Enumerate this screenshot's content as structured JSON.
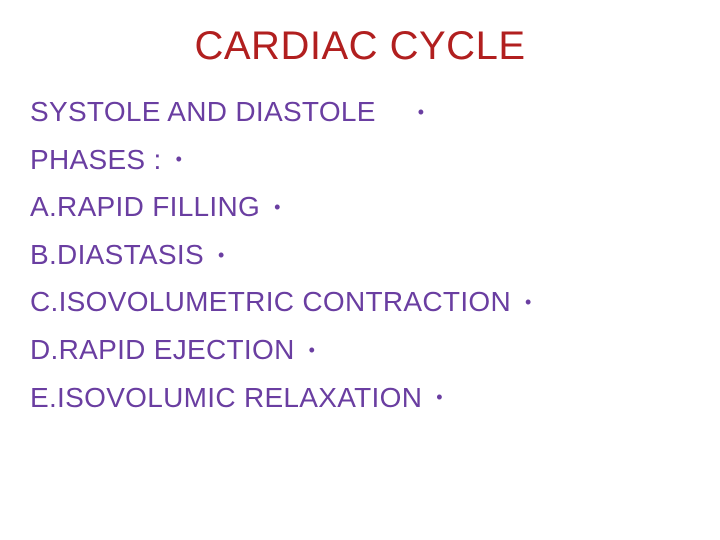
{
  "styling": {
    "title_color": "#b11f1f",
    "body_color": "#6a3ea1",
    "bullet_color": "#6a3ea1",
    "title_fontsize": 40,
    "body_fontsize": 28,
    "background_color": "#ffffff"
  },
  "title": "CARDIAC CYCLE",
  "lines": [
    {
      "text": "SYSTOLE AND DIASTOLE"
    },
    {
      "text": "PHASES :"
    },
    {
      "text": "A.RAPID FILLING"
    },
    {
      "text": "B.DIASTASIS"
    },
    {
      "text": "C.ISOVOLUMETRIC CONTRACTION"
    },
    {
      "text": "D.RAPID EJECTION"
    },
    {
      "text": "E.ISOVOLUMIC RELAXATION"
    }
  ]
}
